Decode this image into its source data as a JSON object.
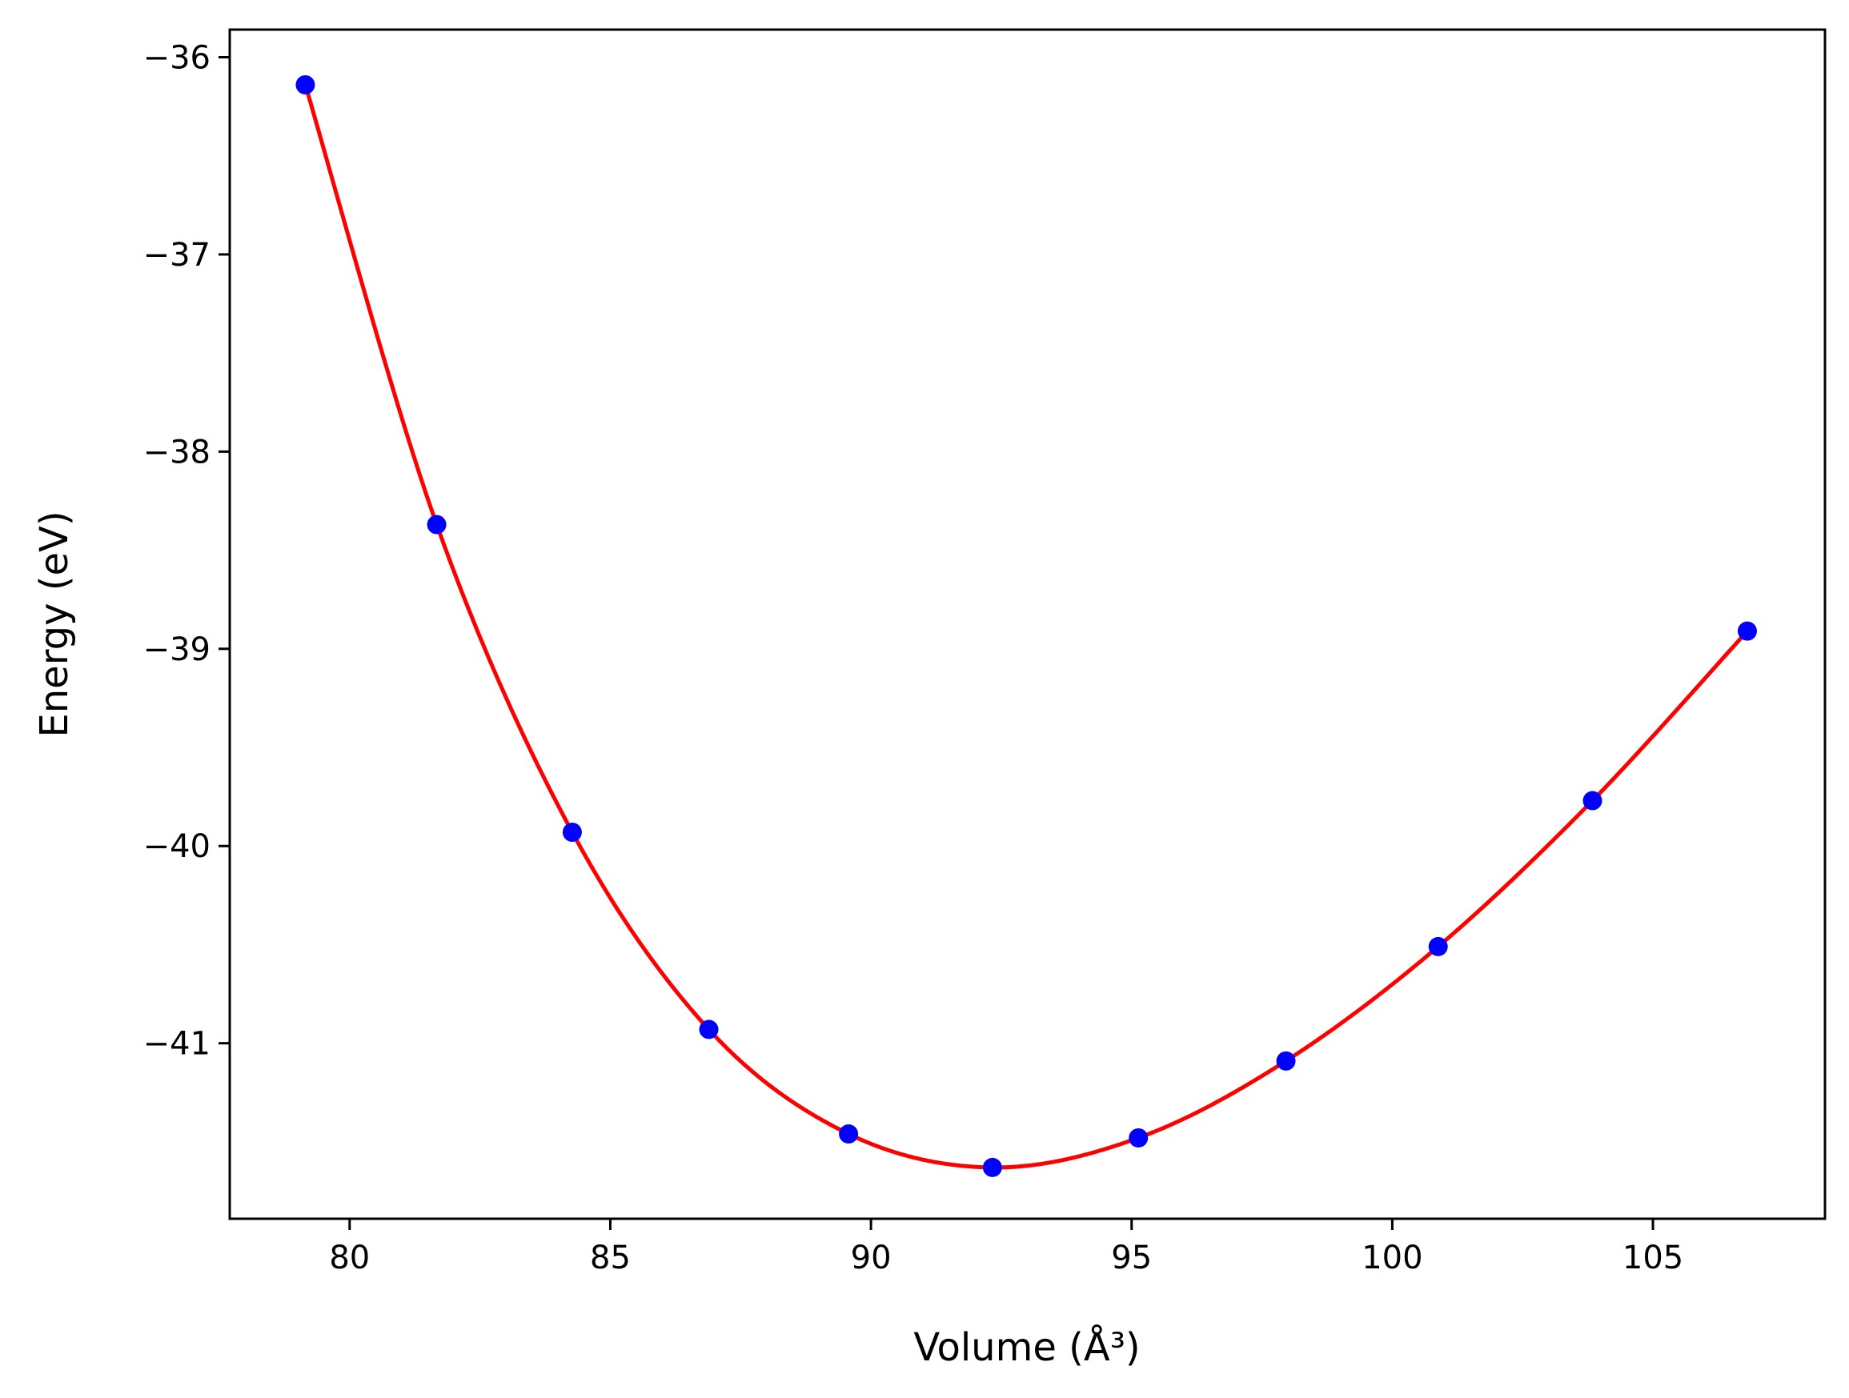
{
  "chart_data": {
    "type": "scatter",
    "xlabel": "Volume (Å³)",
    "ylabel": "Energy (eV)",
    "xlim": [
      77.7,
      108.3
    ],
    "ylim": [
      -41.89,
      -35.86
    ],
    "x_ticks": [
      80,
      85,
      90,
      95,
      100,
      105
    ],
    "y_ticks": [
      -36,
      -37,
      -38,
      -39,
      -40,
      -41
    ],
    "x_tick_labels": [
      "80",
      "85",
      "90",
      "95",
      "100",
      "105"
    ],
    "y_tick_labels": [
      "−36",
      "−37",
      "−38",
      "−39",
      "−40",
      "−41"
    ],
    "grid": false,
    "legend": false,
    "series": [
      {
        "kind": "scatter",
        "color": "#0000ff",
        "x": [
          79.15,
          81.67,
          84.27,
          86.89,
          89.57,
          92.33,
          95.13,
          97.96,
          100.88,
          103.84,
          106.81
        ],
        "y": [
          -36.14,
          -38.37,
          -39.93,
          -40.93,
          -41.46,
          -41.63,
          -41.48,
          -41.09,
          -40.51,
          -39.77,
          -38.91
        ]
      },
      {
        "kind": "line",
        "color": "#ff0000",
        "x": [
          79.15,
          81.67,
          84.27,
          86.89,
          89.57,
          92.33,
          95.13,
          97.96,
          100.88,
          103.84,
          106.81
        ],
        "y": [
          -36.14,
          -38.37,
          -39.93,
          -40.93,
          -41.46,
          -41.63,
          -41.48,
          -41.09,
          -40.51,
          -39.77,
          -38.91
        ]
      }
    ]
  }
}
